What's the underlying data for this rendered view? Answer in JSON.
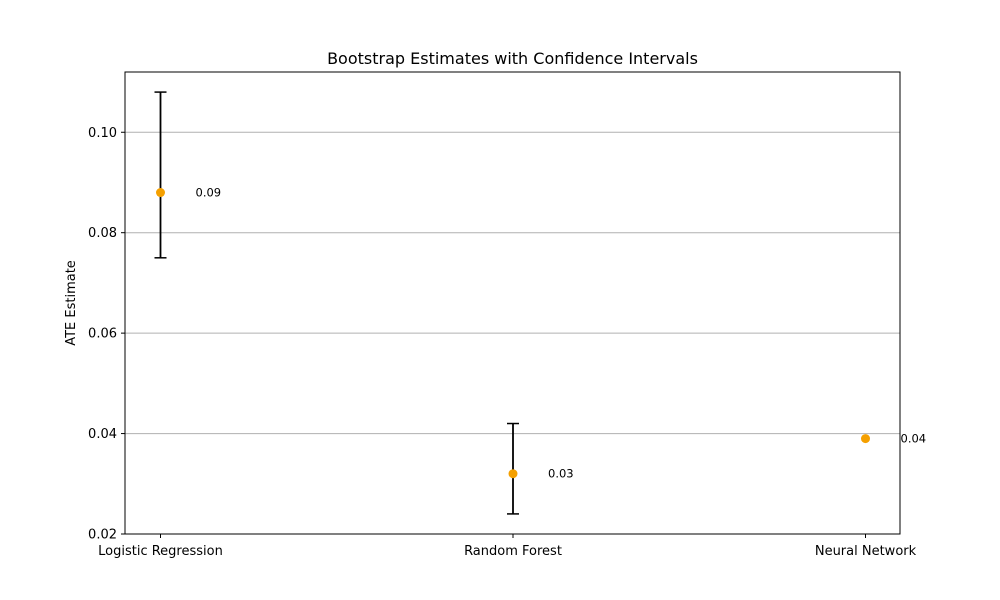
{
  "chart_data": {
    "type": "scatter",
    "title": "Bootstrap Estimates with Confidence Intervals",
    "xlabel": "",
    "ylabel": "ATE Estimate",
    "categories": [
      "Logistic Regression",
      "Random Forest",
      "Neural Network"
    ],
    "values": [
      0.088,
      0.032,
      0.039
    ],
    "ci_lower": [
      0.075,
      0.024,
      0.039
    ],
    "ci_upper": [
      0.108,
      0.042,
      0.039
    ],
    "data_labels": [
      "0.09",
      "0.03",
      "0.04"
    ],
    "ylim": [
      0.02,
      0.112
    ],
    "yticks": [
      0.02,
      0.04,
      0.06,
      0.08,
      0.1
    ],
    "ytick_labels": [
      "0.02",
      "0.04",
      "0.06",
      "0.08",
      "0.10"
    ],
    "grid": "horizontal",
    "colors": {
      "point": "#f5a000",
      "errorbar": "#000000",
      "grid": "#b0b0b0",
      "axes": "#000000"
    }
  }
}
